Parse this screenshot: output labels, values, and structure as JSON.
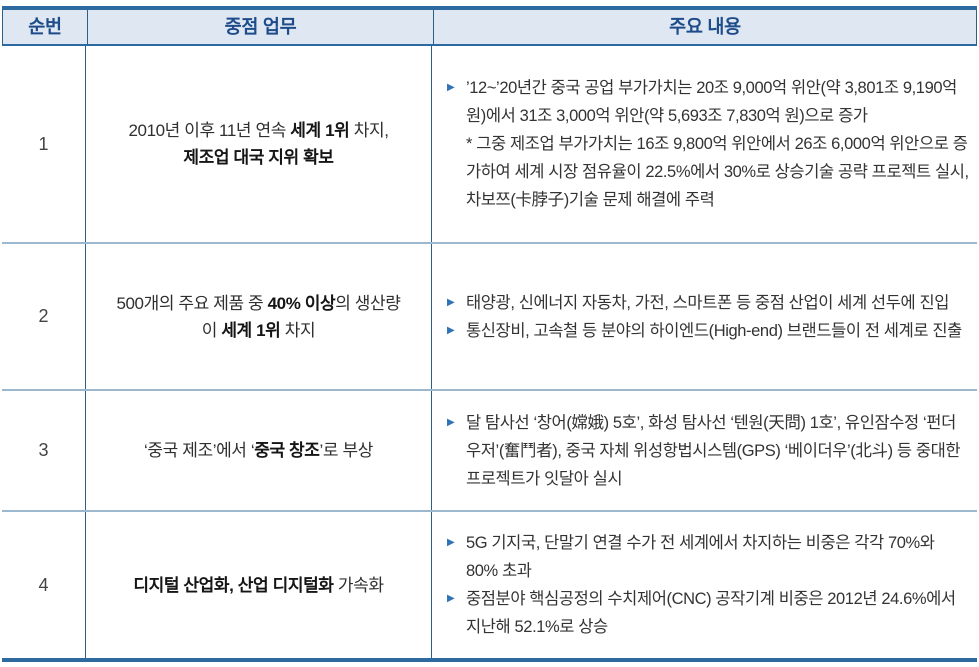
{
  "colors": {
    "border_thick": "#2c6aa0",
    "border_dark": "#2e5f86",
    "row_sep": "#9bb8cf",
    "header_bg": "#dee7f2",
    "header_text": "#1e4c8a",
    "bullet": "#2f74b5",
    "text": "#3a3a3a"
  },
  "table": {
    "bullet_glyph": "▶",
    "headers": [
      {
        "label": "순번"
      },
      {
        "label": "중점 업무"
      },
      {
        "label": "주요 내용"
      }
    ],
    "rows": [
      {
        "num": "1",
        "task": [
          {
            "t": "2010년 이후 11년 연속 ",
            "b": false
          },
          {
            "t": "세계 1위",
            "b": true
          },
          {
            "t": " 차지,\n",
            "b": false
          },
          {
            "t": "제조업 대국 지위 확보",
            "b": true
          }
        ],
        "content": [
          {
            "type": "bullet",
            "segments": [
              {
                "t": "’12~’20년간 중국 공업 부가가치는 20조 9,000억 위안(약 3,801조 9,190억 원)에서 31조 3,000억 위안(약 5,693조 7,830억 원)으로 증가",
                "b": false
              }
            ]
          },
          {
            "type": "note",
            "segments": [
              {
                "t": "* 그중 제조업 부가가치는 16조 9,800억 위안에서 26조 6,000억 위안으로 증가하여 세계 시장 점유율이 22.5%에서 30%로 상승기술 공략 프로젝트 실시, 차보쯔(卡脖子)기술 문제 해결에 주력",
                "b": false
              }
            ]
          }
        ]
      },
      {
        "num": "2",
        "task": [
          {
            "t": "500개의 주요 제품 중 ",
            "b": false
          },
          {
            "t": "40% 이상",
            "b": true
          },
          {
            "t": "의 생산량\n이 ",
            "b": false
          },
          {
            "t": "세계 1위",
            "b": true
          },
          {
            "t": " 차지",
            "b": false
          }
        ],
        "content": [
          {
            "type": "bullet",
            "segments": [
              {
                "t": "태양광, 신에너지 자동차, 가전, 스마트폰 등 중점 산업이 세계 선두에 진입",
                "b": false
              }
            ]
          },
          {
            "type": "bullet",
            "segments": [
              {
                "t": "통신장비, 고속철 등 분야의 하이엔드(High-end) 브랜드들이 전 세계로 진출",
                "b": false
              }
            ]
          }
        ]
      },
      {
        "num": "3",
        "task": [
          {
            "t": "‘중국 제조’에서 ‘",
            "b": false
          },
          {
            "t": "중국 창조",
            "b": true
          },
          {
            "t": "’로 부상",
            "b": false
          }
        ],
        "content": [
          {
            "type": "bullet",
            "segments": [
              {
                "t": "달 탐사선 ‘창어(嫦娥) 5호’, 화성 탐사선 ‘텐원(天問) 1호’, 유인잠수정 ‘펀더우저’(奮鬥者), 중국 자체 위성항법시스템(GPS) ‘베이더우’(北斗) 등 중대한 프로젝트가 잇달아 실시",
                "b": false
              }
            ]
          }
        ]
      },
      {
        "num": "4",
        "task": [
          {
            "t": "디지털 산업화, 산업 디지털화",
            "b": true
          },
          {
            "t": " 가속화",
            "b": false
          }
        ],
        "content": [
          {
            "type": "bullet",
            "segments": [
              {
                "t": "5G 기지국, 단말기 연결 수가 전 세계에서 차지하는 비중은 각각 70%와 80% 초과",
                "b": false
              }
            ]
          },
          {
            "type": "bullet",
            "segments": [
              {
                "t": "중점분야 핵심공정의 수치제어(CNC) 공작기계 비중은 2012년 24.6%에서 지난해 52.1%로 상승",
                "b": false
              }
            ]
          }
        ]
      }
    ]
  }
}
